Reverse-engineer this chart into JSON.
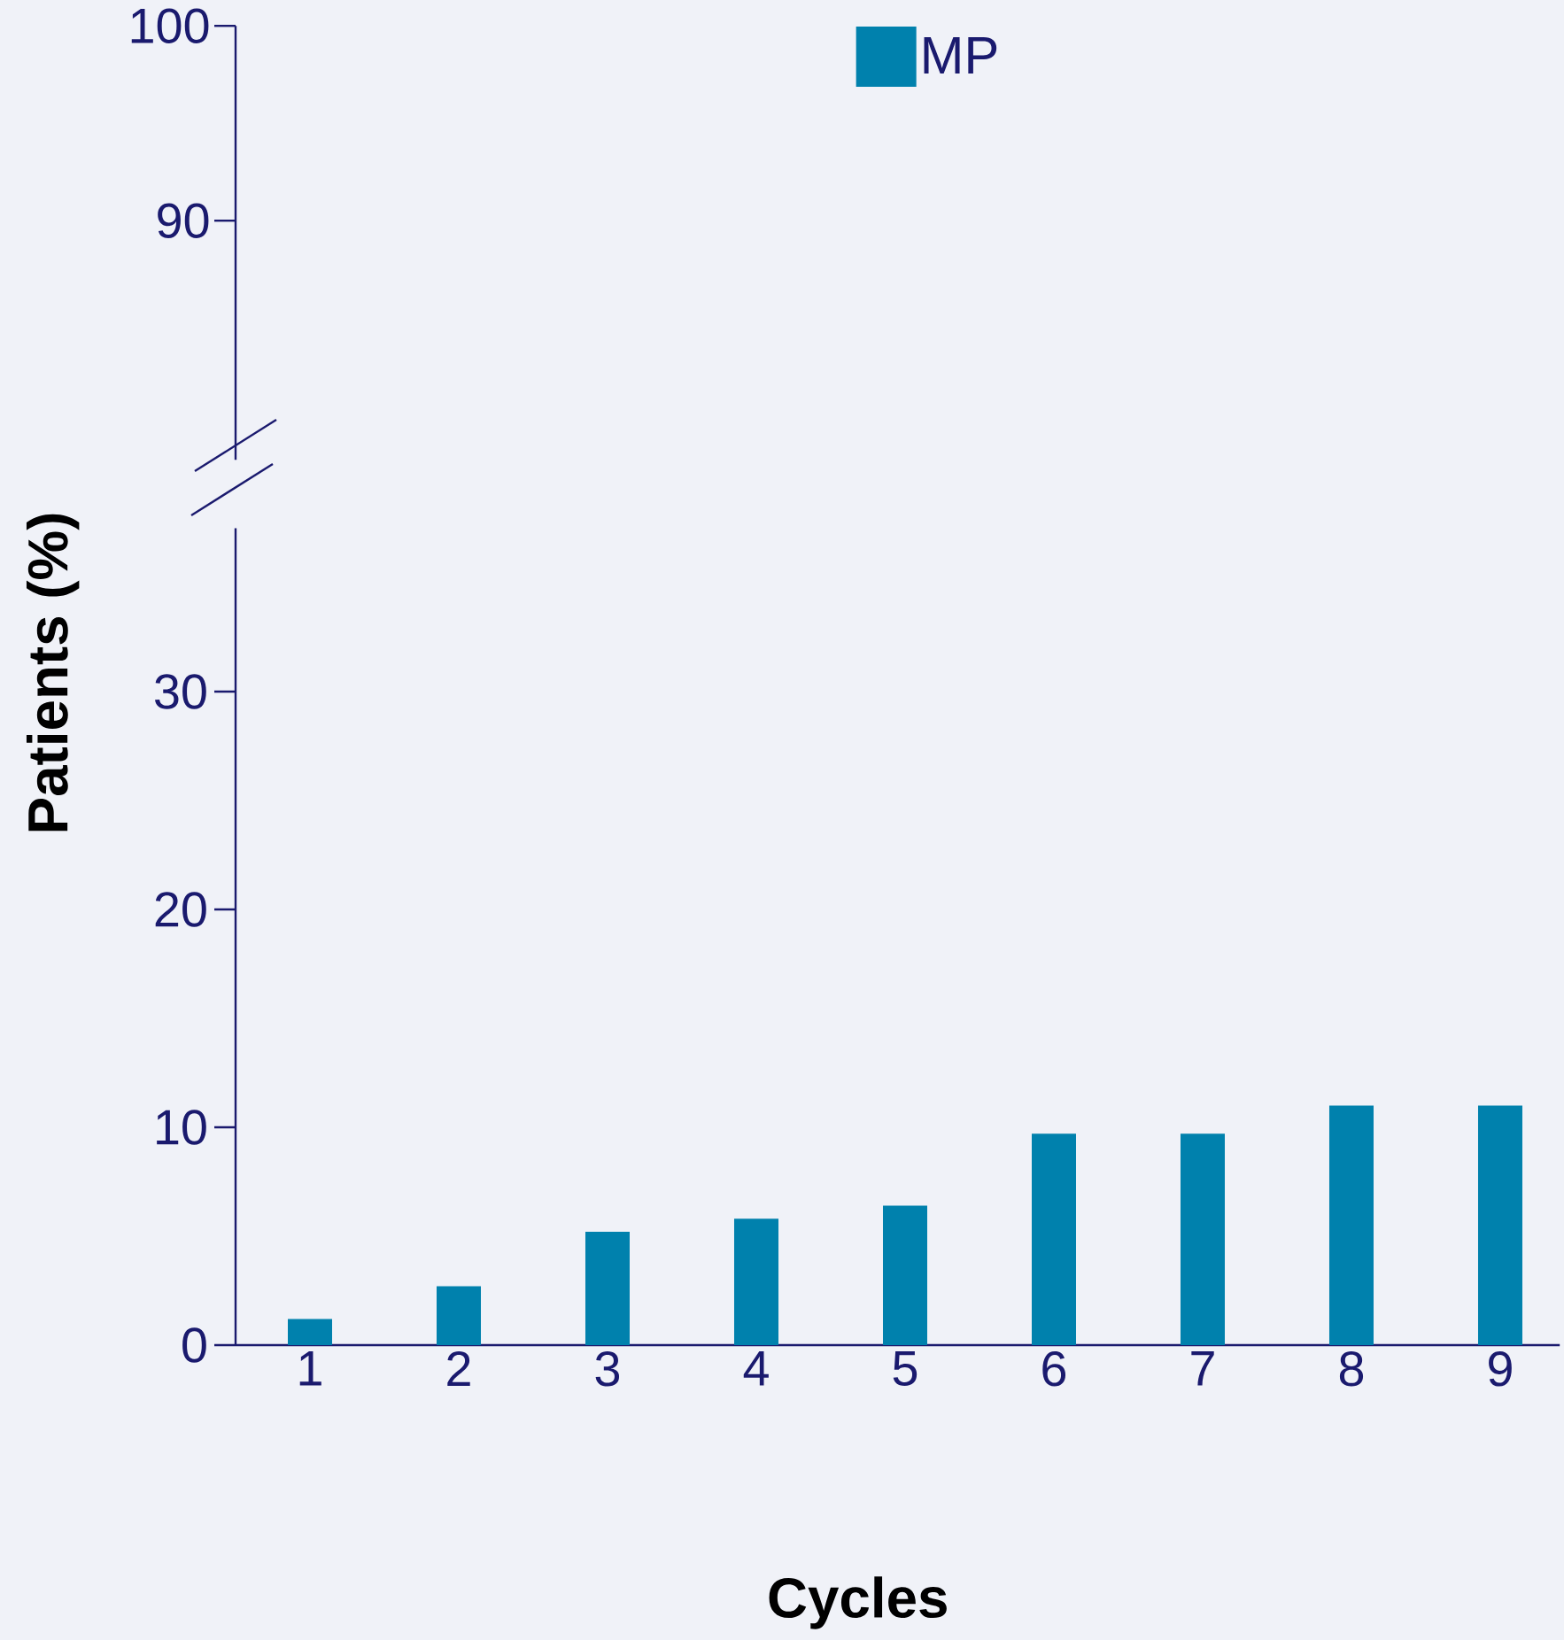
{
  "chart_data": [
    {
      "type": "other",
      "annotations": [
        "100",
        "90"
      ]
    },
    {
      "type": "bar",
      "xlabel": "Cycles",
      "ylabel": "Patients (%)",
      "categories": [
        "1",
        "2",
        "3",
        "4",
        "5",
        "6",
        "7",
        "8",
        "9"
      ],
      "series": [
        {
          "name": "MP",
          "color": "#0081ad",
          "values": [
            1.2,
            2.7,
            5.2,
            5.8,
            6.4,
            9.7,
            9.7,
            11.0,
            11.0
          ]
        }
      ],
      "ylim": [
        0,
        37.5
      ],
      "yticks": [
        0,
        10,
        20,
        30
      ],
      "legend": "top"
    }
  ]
}
